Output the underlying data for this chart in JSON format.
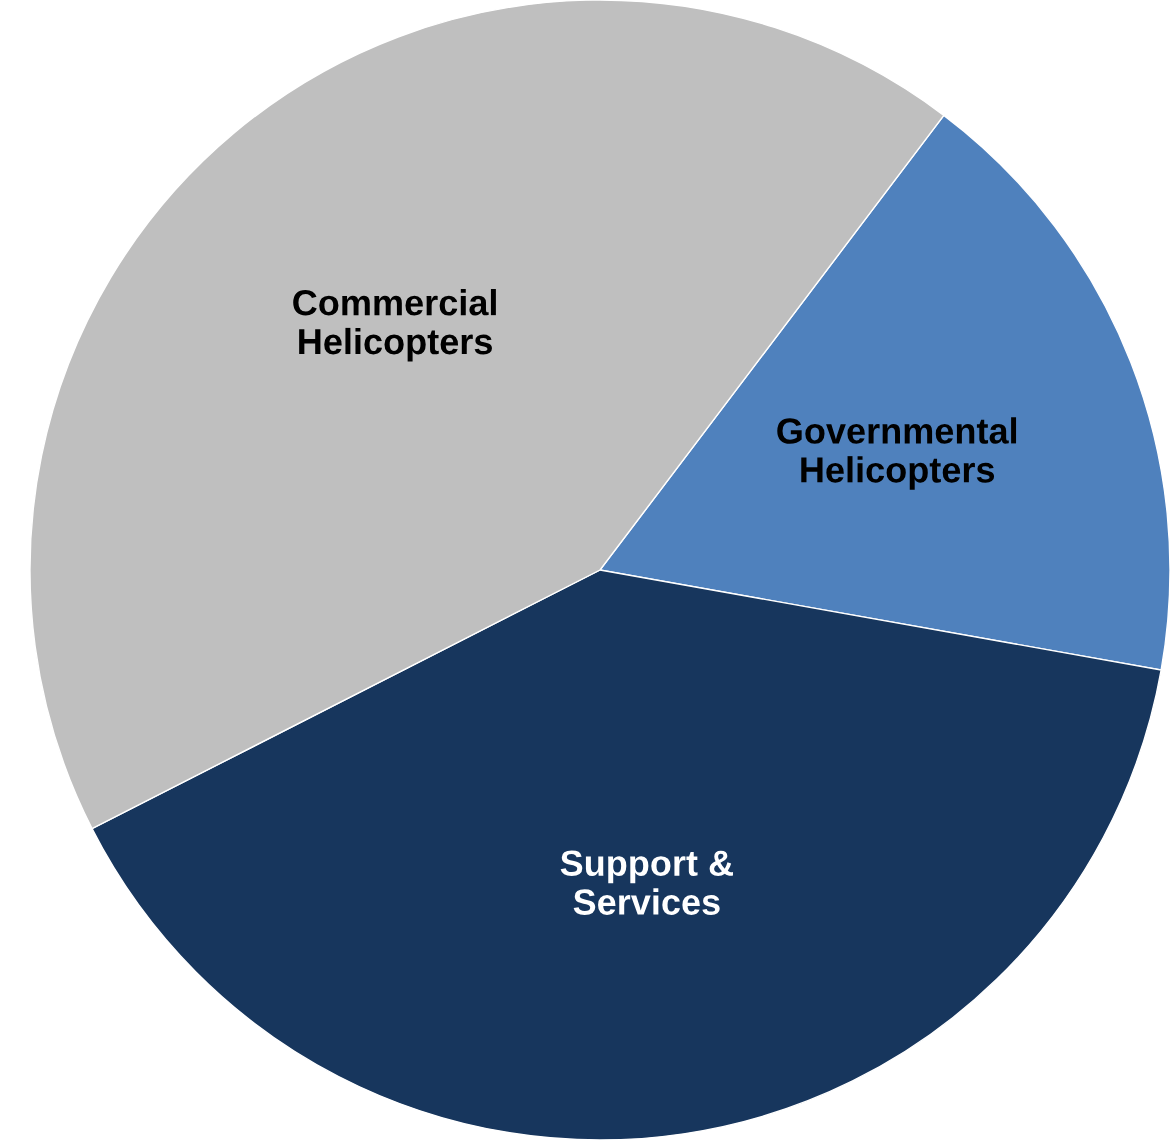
{
  "chart_data": {
    "type": "pie",
    "categories": [
      "Governmental\nHelicopters",
      "Support &\nServices",
      "Commercial\nHelicopters"
    ],
    "values": [
      17.5,
      39.7,
      42.8
    ],
    "colors": [
      "#4f81bd",
      "#17365d",
      "#bfbfbf"
    ],
    "legend": false
  }
}
